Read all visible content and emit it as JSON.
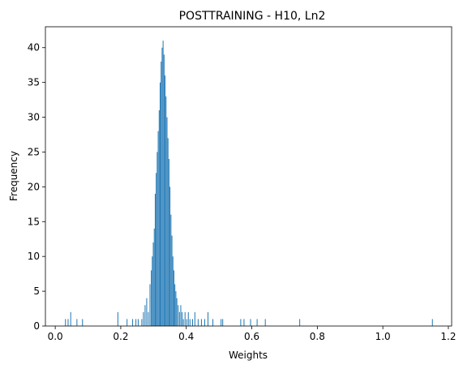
{
  "chart_data": {
    "type": "bar",
    "title": "POSTTRAINING - H10, Ln2",
    "xlabel": "Weights",
    "ylabel": "Frequency",
    "xlim": [
      -0.03,
      1.21
    ],
    "ylim": [
      0,
      43
    ],
    "xticks": [
      0.0,
      0.2,
      0.4,
      0.6,
      0.8,
      1.0,
      1.2
    ],
    "xtick_labels": [
      "0.0",
      "0.2",
      "0.4",
      "0.6",
      "0.8",
      "1.0",
      "1.2"
    ],
    "yticks": [
      0,
      5,
      10,
      15,
      20,
      25,
      30,
      35,
      40
    ],
    "ytick_labels": [
      "0",
      "5",
      "10",
      "15",
      "20",
      "25",
      "30",
      "35",
      "40"
    ],
    "bar_color": "#1f77b4",
    "bin_width": 0.0023,
    "bins": [
      {
        "x": 0.03,
        "count": 1
      },
      {
        "x": 0.038,
        "count": 1
      },
      {
        "x": 0.046,
        "count": 2
      },
      {
        "x": 0.065,
        "count": 1
      },
      {
        "x": 0.082,
        "count": 1
      },
      {
        "x": 0.19,
        "count": 2
      },
      {
        "x": 0.218,
        "count": 1
      },
      {
        "x": 0.235,
        "count": 1
      },
      {
        "x": 0.245,
        "count": 1
      },
      {
        "x": 0.252,
        "count": 1
      },
      {
        "x": 0.263,
        "count": 1
      },
      {
        "x": 0.268,
        "count": 2
      },
      {
        "x": 0.273,
        "count": 3
      },
      {
        "x": 0.278,
        "count": 4
      },
      {
        "x": 0.283,
        "count": 2
      },
      {
        "x": 0.288,
        "count": 6
      },
      {
        "x": 0.292,
        "count": 8
      },
      {
        "x": 0.295,
        "count": 10
      },
      {
        "x": 0.298,
        "count": 12
      },
      {
        "x": 0.301,
        "count": 14
      },
      {
        "x": 0.304,
        "count": 19
      },
      {
        "x": 0.307,
        "count": 22
      },
      {
        "x": 0.31,
        "count": 25
      },
      {
        "x": 0.313,
        "count": 28
      },
      {
        "x": 0.316,
        "count": 31
      },
      {
        "x": 0.319,
        "count": 35
      },
      {
        "x": 0.322,
        "count": 38
      },
      {
        "x": 0.325,
        "count": 40
      },
      {
        "x": 0.328,
        "count": 41
      },
      {
        "x": 0.331,
        "count": 39
      },
      {
        "x": 0.334,
        "count": 36
      },
      {
        "x": 0.337,
        "count": 33
      },
      {
        "x": 0.34,
        "count": 30
      },
      {
        "x": 0.343,
        "count": 27
      },
      {
        "x": 0.346,
        "count": 24
      },
      {
        "x": 0.349,
        "count": 20
      },
      {
        "x": 0.352,
        "count": 16
      },
      {
        "x": 0.355,
        "count": 13
      },
      {
        "x": 0.358,
        "count": 10
      },
      {
        "x": 0.361,
        "count": 8
      },
      {
        "x": 0.364,
        "count": 6
      },
      {
        "x": 0.367,
        "count": 5
      },
      {
        "x": 0.37,
        "count": 4
      },
      {
        "x": 0.374,
        "count": 3
      },
      {
        "x": 0.378,
        "count": 2
      },
      {
        "x": 0.382,
        "count": 3
      },
      {
        "x": 0.386,
        "count": 2
      },
      {
        "x": 0.39,
        "count": 1
      },
      {
        "x": 0.395,
        "count": 2
      },
      {
        "x": 0.4,
        "count": 1
      },
      {
        "x": 0.405,
        "count": 2
      },
      {
        "x": 0.41,
        "count": 1
      },
      {
        "x": 0.418,
        "count": 1
      },
      {
        "x": 0.425,
        "count": 2
      },
      {
        "x": 0.435,
        "count": 1
      },
      {
        "x": 0.445,
        "count": 1
      },
      {
        "x": 0.455,
        "count": 1
      },
      {
        "x": 0.465,
        "count": 2
      },
      {
        "x": 0.48,
        "count": 1
      },
      {
        "x": 0.505,
        "count": 1
      },
      {
        "x": 0.51,
        "count": 1
      },
      {
        "x": 0.565,
        "count": 1
      },
      {
        "x": 0.575,
        "count": 1
      },
      {
        "x": 0.595,
        "count": 1
      },
      {
        "x": 0.615,
        "count": 1
      },
      {
        "x": 0.64,
        "count": 1
      },
      {
        "x": 0.745,
        "count": 1
      },
      {
        "x": 1.15,
        "count": 1
      }
    ]
  }
}
